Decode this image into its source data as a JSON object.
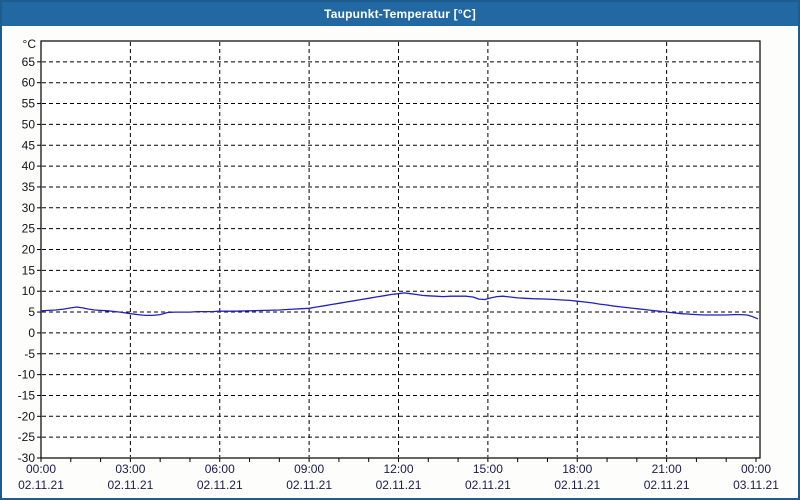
{
  "window": {
    "title": "Taupunkt-Temperatur [°C]"
  },
  "colors": {
    "title_bar": "#2268A2",
    "outer_border": "#1E5C8E",
    "page_bg": "#fdfdfc",
    "plot_bg": "#ffffff",
    "frame": "#000000",
    "grid": "#000000",
    "y_label_text": "#111118",
    "x_label_text": "#1a1a4e",
    "line": "#2222BB"
  },
  "chart_data": {
    "type": "line",
    "title": "Taupunkt-Temperatur [°C]",
    "xlabel": "",
    "ylabel": "°C",
    "ylim": [
      -30,
      70
    ],
    "yticks": {
      "min_label": -30,
      "max_label": 65,
      "step": 5
    },
    "grid": "dashed",
    "legend": "none",
    "x_hours_range": [
      0,
      24
    ],
    "x_minor_tick_every_hours": 1,
    "x_major_ticks": [
      {
        "hours": 0,
        "time": "00:00",
        "date": "02.11.21"
      },
      {
        "hours": 3,
        "time": "03:00",
        "date": "02.11.21"
      },
      {
        "hours": 6,
        "time": "06:00",
        "date": "02.11.21"
      },
      {
        "hours": 9,
        "time": "09:00",
        "date": "02.11.21"
      },
      {
        "hours": 12,
        "time": "12:00",
        "date": "02.11.21"
      },
      {
        "hours": 15,
        "time": "15:00",
        "date": "02.11.21"
      },
      {
        "hours": 18,
        "time": "18:00",
        "date": "02.11.21"
      },
      {
        "hours": 21,
        "time": "21:00",
        "date": "02.11.21"
      },
      {
        "hours": 24,
        "time": "00:00",
        "date": "03.11.21"
      }
    ],
    "series": [
      {
        "name": "Taupunkt-Temperatur",
        "unit": "°C",
        "color": "#2222BB",
        "points": [
          [
            0.0,
            5.3
          ],
          [
            0.25,
            5.4
          ],
          [
            0.5,
            5.5
          ],
          [
            0.75,
            5.7
          ],
          [
            1.0,
            6.0
          ],
          [
            1.2,
            6.2
          ],
          [
            1.4,
            6.0
          ],
          [
            1.6,
            5.7
          ],
          [
            1.8,
            5.5
          ],
          [
            2.0,
            5.4
          ],
          [
            2.25,
            5.3
          ],
          [
            2.5,
            5.1
          ],
          [
            2.75,
            4.9
          ],
          [
            3.0,
            4.6
          ],
          [
            3.25,
            4.4
          ],
          [
            3.5,
            4.2
          ],
          [
            3.75,
            4.2
          ],
          [
            4.0,
            4.4
          ],
          [
            4.25,
            4.9
          ],
          [
            4.5,
            5.0
          ],
          [
            4.75,
            5.0
          ],
          [
            5.0,
            5.0
          ],
          [
            5.25,
            5.1
          ],
          [
            5.5,
            5.1
          ],
          [
            5.75,
            5.1
          ],
          [
            6.0,
            5.2
          ],
          [
            6.5,
            5.2
          ],
          [
            7.0,
            5.3
          ],
          [
            7.5,
            5.4
          ],
          [
            8.0,
            5.5
          ],
          [
            8.25,
            5.6
          ],
          [
            8.5,
            5.7
          ],
          [
            8.75,
            5.8
          ],
          [
            9.0,
            5.9
          ],
          [
            9.25,
            6.2
          ],
          [
            9.5,
            6.5
          ],
          [
            9.75,
            6.8
          ],
          [
            10.0,
            7.1
          ],
          [
            10.25,
            7.4
          ],
          [
            10.5,
            7.7
          ],
          [
            10.75,
            8.0
          ],
          [
            11.0,
            8.3
          ],
          [
            11.25,
            8.6
          ],
          [
            11.5,
            8.9
          ],
          [
            11.75,
            9.2
          ],
          [
            12.0,
            9.4
          ],
          [
            12.2,
            9.6
          ],
          [
            12.4,
            9.4
          ],
          [
            12.6,
            9.2
          ],
          [
            12.8,
            9.0
          ],
          [
            13.0,
            8.9
          ],
          [
            13.25,
            8.8
          ],
          [
            13.5,
            8.7
          ],
          [
            13.75,
            8.8
          ],
          [
            14.0,
            8.8
          ],
          [
            14.25,
            8.8
          ],
          [
            14.5,
            8.6
          ],
          [
            14.7,
            8.1
          ],
          [
            14.9,
            8.0
          ],
          [
            15.1,
            8.4
          ],
          [
            15.3,
            8.7
          ],
          [
            15.5,
            8.8
          ],
          [
            15.75,
            8.6
          ],
          [
            16.0,
            8.4
          ],
          [
            16.25,
            8.3
          ],
          [
            16.5,
            8.2
          ],
          [
            17.0,
            8.1
          ],
          [
            17.25,
            8.0
          ],
          [
            17.5,
            7.9
          ],
          [
            17.75,
            7.8
          ],
          [
            18.0,
            7.6
          ],
          [
            18.25,
            7.4
          ],
          [
            18.5,
            7.2
          ],
          [
            18.75,
            6.9
          ],
          [
            19.0,
            6.7
          ],
          [
            19.25,
            6.4
          ],
          [
            19.5,
            6.2
          ],
          [
            19.75,
            6.0
          ],
          [
            20.0,
            5.8
          ],
          [
            20.25,
            5.6
          ],
          [
            20.5,
            5.4
          ],
          [
            20.75,
            5.2
          ],
          [
            21.0,
            5.0
          ],
          [
            21.25,
            4.8
          ],
          [
            21.5,
            4.6
          ],
          [
            21.75,
            4.5
          ],
          [
            22.0,
            4.4
          ],
          [
            22.25,
            4.3
          ],
          [
            22.5,
            4.3
          ],
          [
            22.75,
            4.3
          ],
          [
            23.0,
            4.3
          ],
          [
            23.25,
            4.4
          ],
          [
            23.5,
            4.4
          ],
          [
            23.7,
            4.3
          ],
          [
            23.85,
            4.0
          ],
          [
            24.05,
            3.4
          ]
        ]
      }
    ]
  }
}
